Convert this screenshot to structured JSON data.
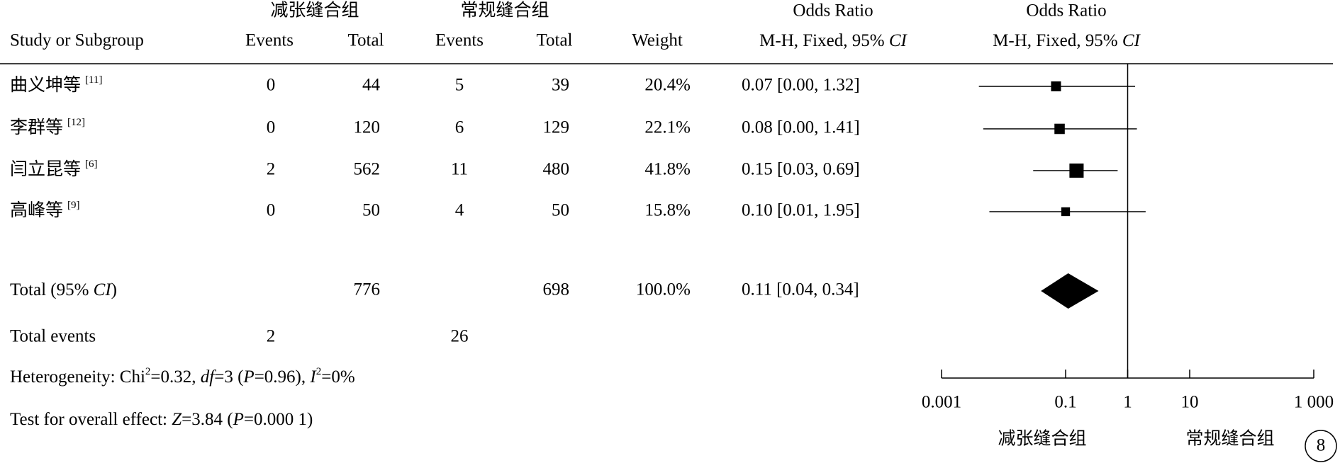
{
  "chart_data": {
    "type": "forest",
    "group_labels": [
      "减张缝合组",
      "常规缝合组"
    ],
    "header": {
      "study": "Study or Subgroup",
      "cols": [
        "Events",
        "Total",
        "Events",
        "Total",
        "Weight"
      ],
      "or_title": "Odds Ratio",
      "or_method": [
        {
          "text": "M-H, Fixed, 95% "
        },
        {
          "text": "CI",
          "i": true
        }
      ],
      "plot_title": "Odds Ratio",
      "plot_method": [
        {
          "text": "M-H, Fixed, 95% "
        },
        {
          "text": "CI",
          "i": true
        }
      ]
    },
    "studies": [
      {
        "name": "曲义坤等",
        "ref": "[11]",
        "events1": 0,
        "total1": 44,
        "events2": 5,
        "total2": 39,
        "weight": 20.4,
        "weight_label": "20.4%",
        "or": 0.07,
        "ci": [
          0.004,
          1.32
        ],
        "or_label": "0.07 [0.00, 1.32]"
      },
      {
        "name": "李群等",
        "ref": "[12]",
        "events1": 0,
        "total1": 120,
        "events2": 6,
        "total2": 129,
        "weight": 22.1,
        "weight_label": "22.1%",
        "or": 0.08,
        "ci": [
          0.0047,
          1.41
        ],
        "or_label": "0.08 [0.00, 1.41]"
      },
      {
        "name": "闫立昆等",
        "ref": "[6]",
        "events1": 2,
        "total1": 562,
        "events2": 11,
        "total2": 480,
        "weight": 41.8,
        "weight_label": "41.8%",
        "or": 0.15,
        "ci": [
          0.03,
          0.69
        ],
        "or_label": "0.15 [0.03, 0.69]"
      },
      {
        "name": "高峰等",
        "ref": "[9]",
        "events1": 0,
        "total1": 50,
        "events2": 4,
        "total2": 50,
        "weight": 15.8,
        "weight_label": "15.8%",
        "or": 0.1,
        "ci": [
          0.0059,
          1.95
        ],
        "or_label": "0.10 [0.01, 1.95]"
      }
    ],
    "total": {
      "label": [
        {
          "text": "Total (95% "
        },
        {
          "text": "CI",
          "i": true
        },
        {
          "text": ")"
        }
      ],
      "total1": 776,
      "total2": 698,
      "weight": 100,
      "weight_label": "100.0%",
      "or": 0.11,
      "ci": [
        0.04,
        0.34
      ],
      "or_label": "0.11 [0.04, 0.34]"
    },
    "total_events": {
      "label": "Total events",
      "events1": 2,
      "events2": 26
    },
    "heterogeneity": [
      {
        "text": "Heterogeneity: Chi"
      },
      {
        "text": "2",
        "sup": true
      },
      {
        "text": "=0.32, "
      },
      {
        "text": "df",
        "i": true
      },
      {
        "text": "=3 ("
      },
      {
        "text": "P",
        "i": true
      },
      {
        "text": "=0.96), "
      },
      {
        "text": "I",
        "i": true
      },
      {
        "text": "2",
        "sup": true
      },
      {
        "text": "=0%"
      }
    ],
    "overall_effect": [
      {
        "text": "Test for overall effect: "
      },
      {
        "text": "Z",
        "i": true
      },
      {
        "text": "=3.84 ("
      },
      {
        "text": "P",
        "i": true
      },
      {
        "text": "=0.000 1)"
      }
    ],
    "log_x": true,
    "xlim": [
      0.001,
      1000
    ],
    "xticks": [
      0.001,
      0.1,
      1,
      10,
      {
        "value": 1000,
        "label": "1 000"
      }
    ],
    "null_line": 1,
    "favors": [
      "减张缝合组",
      "常规缝合组"
    ],
    "figure_number": "8",
    "color": "#000000"
  }
}
